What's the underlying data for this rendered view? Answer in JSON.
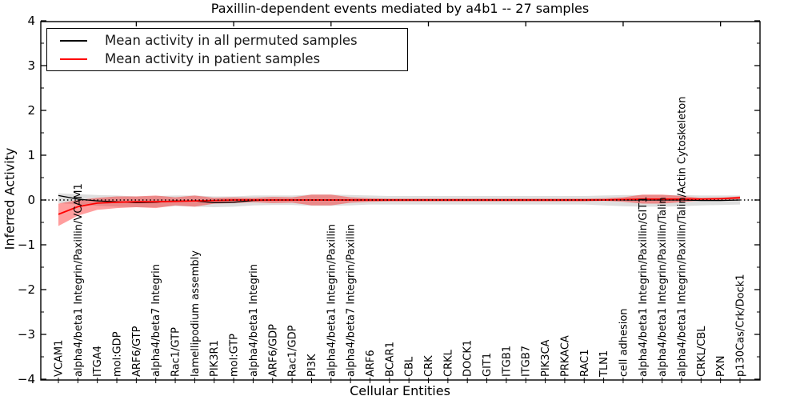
{
  "title": "Paxillin-dependent events mediated by a4b1 -- 27 samples",
  "legend": {
    "entries": [
      {
        "label": "Mean activity in all permuted samples",
        "color": "#000000"
      },
      {
        "label": "Mean activity in patient samples",
        "color": "#ff0000"
      }
    ]
  },
  "colors": {
    "permuted_line": "#000000",
    "patient_line": "#ff0000",
    "permuted_band": "rgba(0,0,0,0.13)",
    "patient_band": "rgba(255,0,0,0.38)",
    "zero_line": "#000000",
    "axis": "#000000"
  },
  "chart_data": {
    "type": "line",
    "title": "Paxillin-dependent events mediated by a4b1 -- 27 samples",
    "xlabel": "Cellular Entities",
    "ylabel": "Inferred Activity",
    "ylim": [
      -4,
      4
    ],
    "y_major_ticks": [
      -4,
      -3,
      -2,
      -1,
      0,
      1,
      2,
      3,
      4
    ],
    "y_tick_labels": [
      "-4",
      "-3",
      "-2",
      "-1",
      "0",
      "1",
      "2",
      "3",
      "4"
    ],
    "y_minor_step": 0.5,
    "x_major_tick_positions": [
      5,
      10,
      15,
      20,
      25,
      30,
      35
    ],
    "grid": false,
    "legend_position": "upper left",
    "zero_reference_line": {
      "y": 0,
      "style": "dotted",
      "color": "#000000"
    },
    "categories": [
      "VCAM1",
      "alpha4/beta1 Integrin/Paxillin/VCAM1",
      "ITGA4",
      "mol:GDP",
      "ARF6/GTP",
      "alpha4/beta7 Integrin",
      "Rac1/GTP",
      "lamellipodium assembly",
      "PIK3R1",
      "mol:GTP",
      "alpha4/beta1 Integrin",
      "ARF6/GDP",
      "Rac1/GDP",
      "PI3K",
      "alpha4/beta1 Integrin/Paxillin",
      "alpha4/beta7 Integrin/Paxillin",
      "ARF6",
      "BCAR1",
      "CBL",
      "CRK",
      "CRKL",
      "DOCK1",
      "GIT1",
      "ITGB1",
      "ITGB7",
      "PIK3CA",
      "PRKACA",
      "RAC1",
      "TLN1",
      "cell adhesion",
      "alpha4/beta1 Integrin/Paxillin/GIT1",
      "alpha4/beta1 Integrin/Paxillin/Talin",
      "alpha4/beta1 Integrin/Paxillin/Talin/Actin Cytoskeleton",
      "CRKL/CBL",
      "PXN",
      "p130Cas/Crk/Dock1"
    ],
    "series": [
      {
        "name": "Mean activity in all permuted samples",
        "color": "#000000",
        "values": [
          0.1,
          0.02,
          -0.02,
          -0.04,
          -0.06,
          -0.05,
          -0.02,
          -0.02,
          -0.06,
          -0.05,
          -0.01,
          0.0,
          0.0,
          0.0,
          0.0,
          0.0,
          0.0,
          0.0,
          0.0,
          0.0,
          0.0,
          0.0,
          0.0,
          0.0,
          0.0,
          0.0,
          0.0,
          0.0,
          0.0,
          0.0,
          0.0,
          0.0,
          0.0,
          -0.01,
          -0.01,
          0.0
        ],
        "band_upper": [
          0.15,
          0.13,
          0.11,
          0.1,
          0.08,
          0.09,
          0.1,
          0.1,
          0.08,
          0.08,
          0.1,
          0.1,
          0.1,
          0.12,
          0.12,
          0.11,
          0.1,
          0.09,
          0.09,
          0.09,
          0.09,
          0.09,
          0.09,
          0.09,
          0.09,
          0.09,
          0.09,
          0.09,
          0.1,
          0.11,
          0.11,
          0.11,
          0.11,
          0.1,
          0.1,
          0.1
        ],
        "band_lower": [
          -0.07,
          -0.1,
          -0.13,
          -0.15,
          -0.16,
          -0.16,
          -0.14,
          -0.15,
          -0.16,
          -0.15,
          -0.12,
          -0.11,
          -0.11,
          -0.13,
          -0.13,
          -0.12,
          -0.1,
          -0.1,
          -0.1,
          -0.1,
          -0.1,
          -0.1,
          -0.1,
          -0.1,
          -0.1,
          -0.1,
          -0.1,
          -0.1,
          -0.12,
          -0.14,
          -0.15,
          -0.15,
          -0.14,
          -0.12,
          -0.11,
          -0.1
        ]
      },
      {
        "name": "Mean activity in patient samples",
        "color": "#ff0000",
        "values": [
          -0.32,
          -0.15,
          -0.07,
          -0.05,
          -0.04,
          -0.04,
          -0.03,
          -0.02,
          -0.01,
          0.0,
          0.0,
          0.0,
          0.0,
          0.0,
          0.0,
          0.0,
          0.0,
          0.0,
          0.0,
          0.0,
          0.0,
          0.0,
          0.0,
          0.0,
          0.0,
          0.0,
          0.0,
          0.0,
          0.0,
          0.01,
          0.02,
          0.02,
          0.02,
          0.02,
          0.03,
          0.05
        ],
        "band_upper": [
          -0.08,
          0.0,
          0.05,
          0.08,
          0.08,
          0.1,
          0.06,
          0.1,
          0.05,
          0.06,
          0.05,
          0.07,
          0.06,
          0.12,
          0.12,
          0.06,
          0.04,
          0.03,
          0.03,
          0.03,
          0.03,
          0.03,
          0.03,
          0.03,
          0.03,
          0.03,
          0.03,
          0.03,
          0.04,
          0.06,
          0.12,
          0.12,
          0.09,
          0.05,
          0.05,
          0.08
        ],
        "band_lower": [
          -0.58,
          -0.35,
          -0.22,
          -0.18,
          -0.16,
          -0.18,
          -0.12,
          -0.15,
          -0.08,
          -0.07,
          -0.05,
          -0.07,
          -0.06,
          -0.12,
          -0.12,
          -0.06,
          -0.04,
          -0.03,
          -0.03,
          -0.03,
          -0.03,
          -0.03,
          -0.03,
          -0.03,
          -0.03,
          -0.03,
          -0.03,
          -0.03,
          -0.02,
          -0.04,
          -0.08,
          -0.08,
          -0.05,
          -0.01,
          0.0,
          0.02
        ]
      }
    ]
  }
}
